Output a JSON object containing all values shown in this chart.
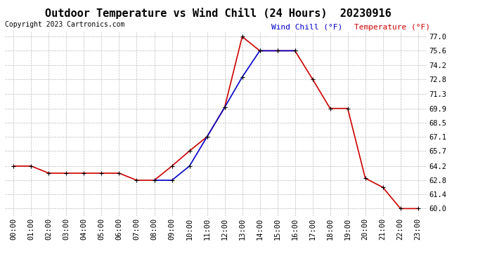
{
  "title": "Outdoor Temperature vs Wind Chill (24 Hours)  20230916",
  "copyright": "Copyright 2023 Cartronics.com",
  "legend_wind_chill": "Wind Chill (°F)",
  "legend_temperature": "Temperature (°F)",
  "hours": [
    0,
    1,
    2,
    3,
    4,
    5,
    6,
    7,
    8,
    9,
    10,
    11,
    12,
    13,
    14,
    15,
    16,
    17,
    18,
    19,
    20,
    21,
    22,
    23
  ],
  "temperature": [
    64.2,
    64.2,
    63.5,
    63.5,
    63.5,
    63.5,
    63.5,
    62.8,
    62.8,
    64.2,
    65.7,
    67.1,
    70.0,
    77.0,
    75.6,
    75.6,
    75.6,
    72.8,
    69.9,
    69.9,
    63.0,
    62.1,
    60.0,
    60.0
  ],
  "wind_chill": [
    null,
    null,
    null,
    null,
    null,
    null,
    null,
    null,
    62.8,
    62.8,
    64.2,
    67.1,
    70.0,
    73.0,
    75.6,
    75.6,
    75.6,
    null,
    null,
    null,
    null,
    null,
    null,
    null
  ],
  "ylim_min": 59.3,
  "ylim_max": 77.5,
  "yticks": [
    60.0,
    61.4,
    62.8,
    64.2,
    65.7,
    67.1,
    68.5,
    69.9,
    71.3,
    72.8,
    74.2,
    75.6,
    77.0
  ],
  "temp_color": "#cc0000",
  "wind_color": "#0000cc",
  "marker_color": "#000000",
  "bg_color": "#ffffff",
  "grid_color": "#bbbbbb",
  "title_fontsize": 11,
  "tick_fontsize": 7.5,
  "copyright_fontsize": 7,
  "legend_fontsize": 8,
  "line_width": 1.2,
  "marker_size": 5
}
